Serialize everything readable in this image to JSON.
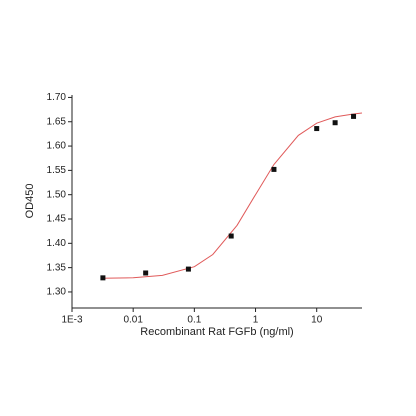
{
  "chart_data": {
    "type": "scatter",
    "xlabel": "Recombinant Rat FGFb (ng/ml)",
    "ylabel": "OD450",
    "xscale": "log",
    "xlim": [
      0.001,
      55
    ],
    "ylim": [
      1.267,
      1.705
    ],
    "xticks": [
      {
        "value": 0.001,
        "label": "1E-3"
      },
      0.01,
      0.1,
      1,
      10
    ],
    "yticks": [
      {
        "value": 1.3,
        "label": "1.30"
      },
      1.35,
      {
        "value": 1.4,
        "label": "1.40"
      },
      1.45,
      {
        "value": 1.5,
        "label": "1.50"
      },
      1.55,
      {
        "value": 1.6,
        "label": "1.60"
      },
      1.65,
      {
        "value": 1.7,
        "label": "1.70"
      }
    ],
    "points": {
      "color": "#111111",
      "x": [
        0.0032,
        0.016,
        0.08,
        0.4,
        2,
        10,
        20,
        40
      ],
      "values": [
        1.329,
        1.339,
        1.347,
        1.415,
        1.552,
        1.636,
        1.648,
        1.661
      ]
    },
    "curve": {
      "color": "#e05a5a",
      "x": [
        0.003,
        0.01,
        0.03,
        0.1,
        0.2,
        0.5,
        1,
        2,
        5,
        10,
        20,
        40,
        55
      ],
      "values": [
        1.328,
        1.329,
        1.334,
        1.352,
        1.377,
        1.437,
        1.5,
        1.562,
        1.622,
        1.647,
        1.66,
        1.666,
        1.668
      ]
    }
  }
}
